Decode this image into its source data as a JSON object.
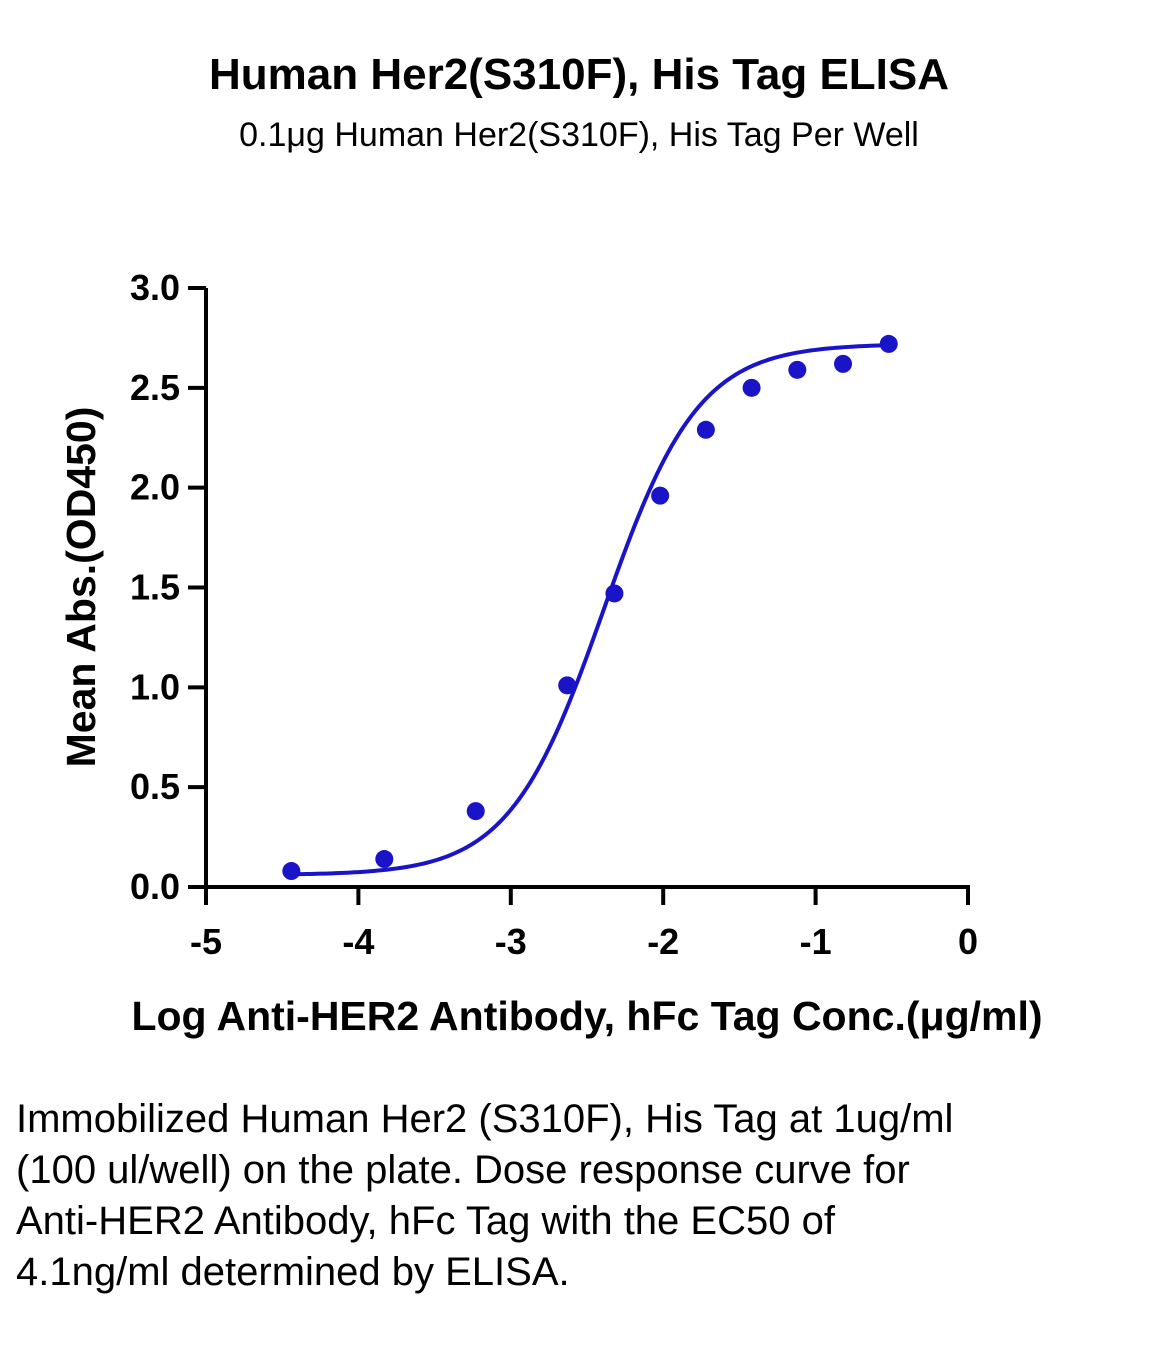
{
  "chart_data": {
    "type": "scatter",
    "title": "Human Her2(S310F), His Tag ELISA",
    "subtitle": "0.1μg Human Her2(S310F), His Tag Per Well",
    "xlabel": "Log Anti-HER2 Antibody, hFc Tag Conc.(μg/ml)",
    "ylabel": "Mean Abs.(OD450)",
    "xlim": [
      -5,
      0
    ],
    "ylim": [
      0,
      3.0
    ],
    "x_ticks": [
      -5,
      -4,
      -3,
      -2,
      -1,
      0
    ],
    "x_tick_labels": [
      "-5",
      "-4",
      "-3",
      "-2",
      "-1",
      "0"
    ],
    "y_ticks": [
      0,
      0.5,
      1.0,
      1.5,
      2.0,
      2.5,
      3.0
    ],
    "y_tick_labels": [
      "0.0",
      "0.5",
      "1.0",
      "1.5",
      "2.0",
      "2.5",
      "3.0"
    ],
    "grid": false,
    "color": "#1a14c8",
    "series": [
      {
        "x": [
          -4.44,
          -3.83,
          -3.23,
          -2.63,
          -2.32,
          -2.02,
          -1.72,
          -1.42,
          -1.12,
          -0.82,
          -0.52
        ],
        "y": [
          0.08,
          0.14,
          0.38,
          1.01,
          1.47,
          1.96,
          2.29,
          2.5,
          2.59,
          2.62,
          2.72
        ]
      }
    ],
    "fit": {
      "model": "4PL",
      "bottom": 0.06,
      "top": 2.72,
      "log_ec50": -2.39,
      "hill": 1.4
    }
  },
  "caption": "Immobilized Human Her2 (S310F), His Tag at 1ug/ml (100 ul/well) on the plate. Dose response curve for Anti-HER2 Antibody, hFc Tag with the EC50 of 4.1ng/ml determined by ELISA."
}
